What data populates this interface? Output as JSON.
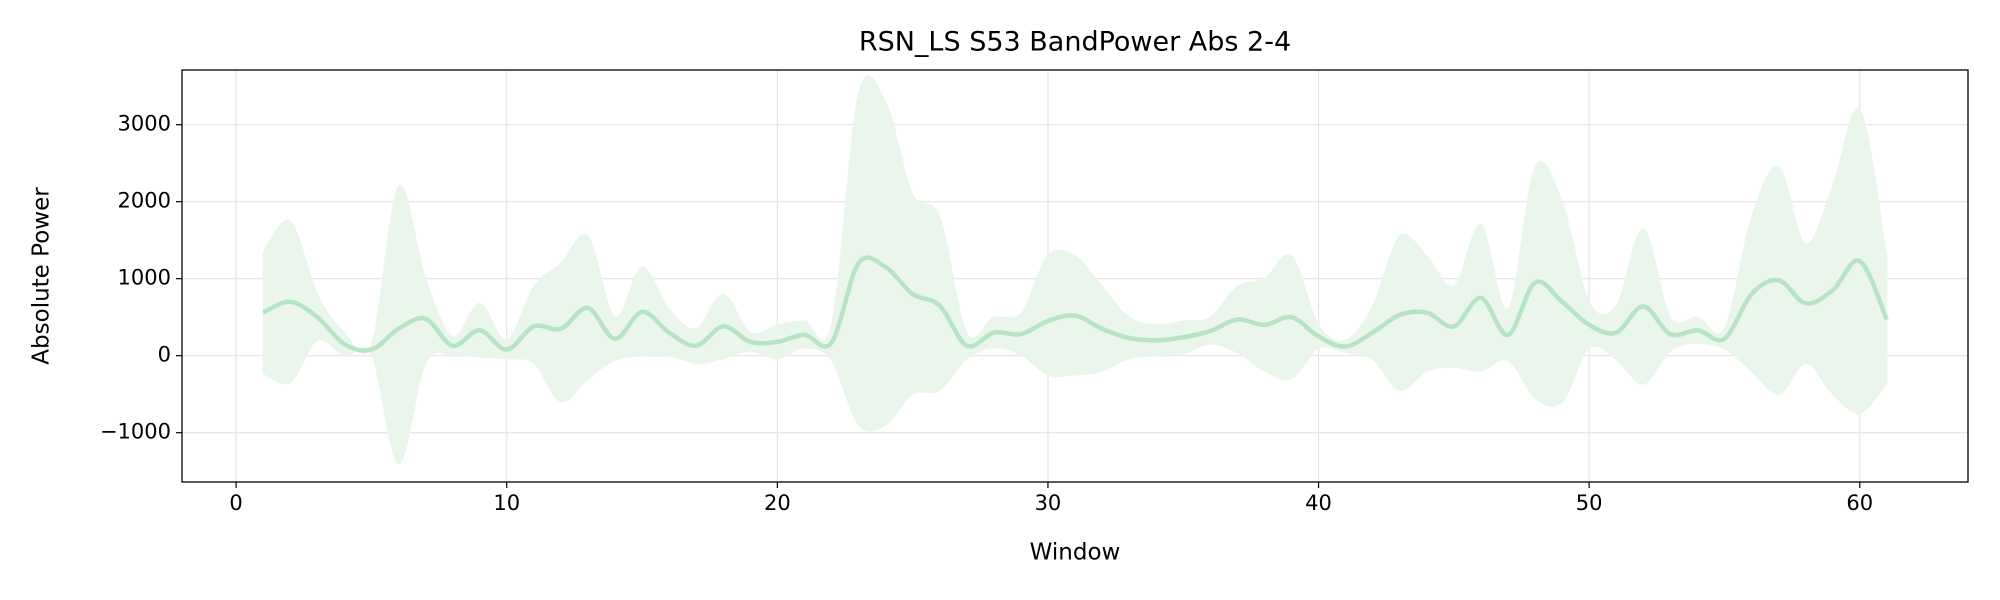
{
  "chart_data": {
    "type": "line",
    "title": "RSN_LS S53 BandPower Abs 2-4",
    "xlabel": "Window",
    "ylabel": "Absolute Power",
    "x": [
      1,
      2,
      3,
      4,
      5,
      6,
      7,
      8,
      9,
      10,
      11,
      12,
      13,
      14,
      15,
      16,
      17,
      18,
      19,
      20,
      21,
      22,
      23,
      24,
      25,
      26,
      27,
      28,
      29,
      30,
      31,
      32,
      33,
      34,
      35,
      36,
      37,
      38,
      39,
      40,
      41,
      42,
      43,
      44,
      45,
      46,
      47,
      48,
      49,
      50,
      51,
      52,
      53,
      54,
      55,
      56,
      57,
      58,
      59,
      60,
      61
    ],
    "series": [
      {
        "color": "#b7e4c5",
        "band_color": "#eaf5ec",
        "values": [
          560,
          700,
          500,
          150,
          80,
          350,
          480,
          130,
          330,
          80,
          380,
          350,
          620,
          220,
          570,
          300,
          130,
          380,
          180,
          180,
          270,
          170,
          1200,
          1150,
          800,
          650,
          130,
          300,
          280,
          450,
          520,
          350,
          230,
          200,
          240,
          320,
          470,
          400,
          500,
          250,
          120,
          300,
          530,
          560,
          380,
          750,
          270,
          950,
          700,
          400,
          300,
          640,
          280,
          330,
          220,
          800,
          980,
          680,
          850,
          1230,
          470
        ],
        "upper": [
          1350,
          1750,
          800,
          300,
          150,
          2200,
          1000,
          250,
          680,
          200,
          900,
          1200,
          1550,
          500,
          1150,
          600,
          350,
          800,
          300,
          400,
          450,
          400,
          3400,
          3300,
          2100,
          1800,
          300,
          500,
          550,
          1300,
          1300,
          900,
          500,
          400,
          450,
          500,
          900,
          1000,
          1300,
          400,
          200,
          650,
          1550,
          1300,
          900,
          1700,
          600,
          2450,
          2000,
          700,
          650,
          1650,
          500,
          500,
          350,
          1800,
          2450,
          1450,
          2200,
          3200,
          1300
        ],
        "lower": [
          -230,
          -350,
          200,
          0,
          10,
          -1400,
          -100,
          10,
          -20,
          -40,
          -100,
          -600,
          -300,
          -60,
          0,
          0,
          -100,
          -40,
          60,
          -40,
          100,
          -60,
          -900,
          -900,
          -500,
          -450,
          -40,
          100,
          10,
          -250,
          -250,
          -200,
          -40,
          0,
          30,
          150,
          40,
          -200,
          -300,
          100,
          40,
          -50,
          -450,
          -200,
          -150,
          -200,
          -60,
          -550,
          -600,
          100,
          -50,
          -370,
          60,
          160,
          90,
          -200,
          -500,
          -100,
          -500,
          -750,
          -350
        ]
      }
    ],
    "xlim": [
      -2,
      64
    ],
    "ylim": [
      -1640,
      3710
    ],
    "xticks": [
      0,
      10,
      20,
      30,
      40,
      50,
      60
    ],
    "yticks": [
      {
        "value": -1000,
        "label": "−1000"
      },
      0,
      1000,
      2000,
      3000
    ],
    "grid": true
  }
}
